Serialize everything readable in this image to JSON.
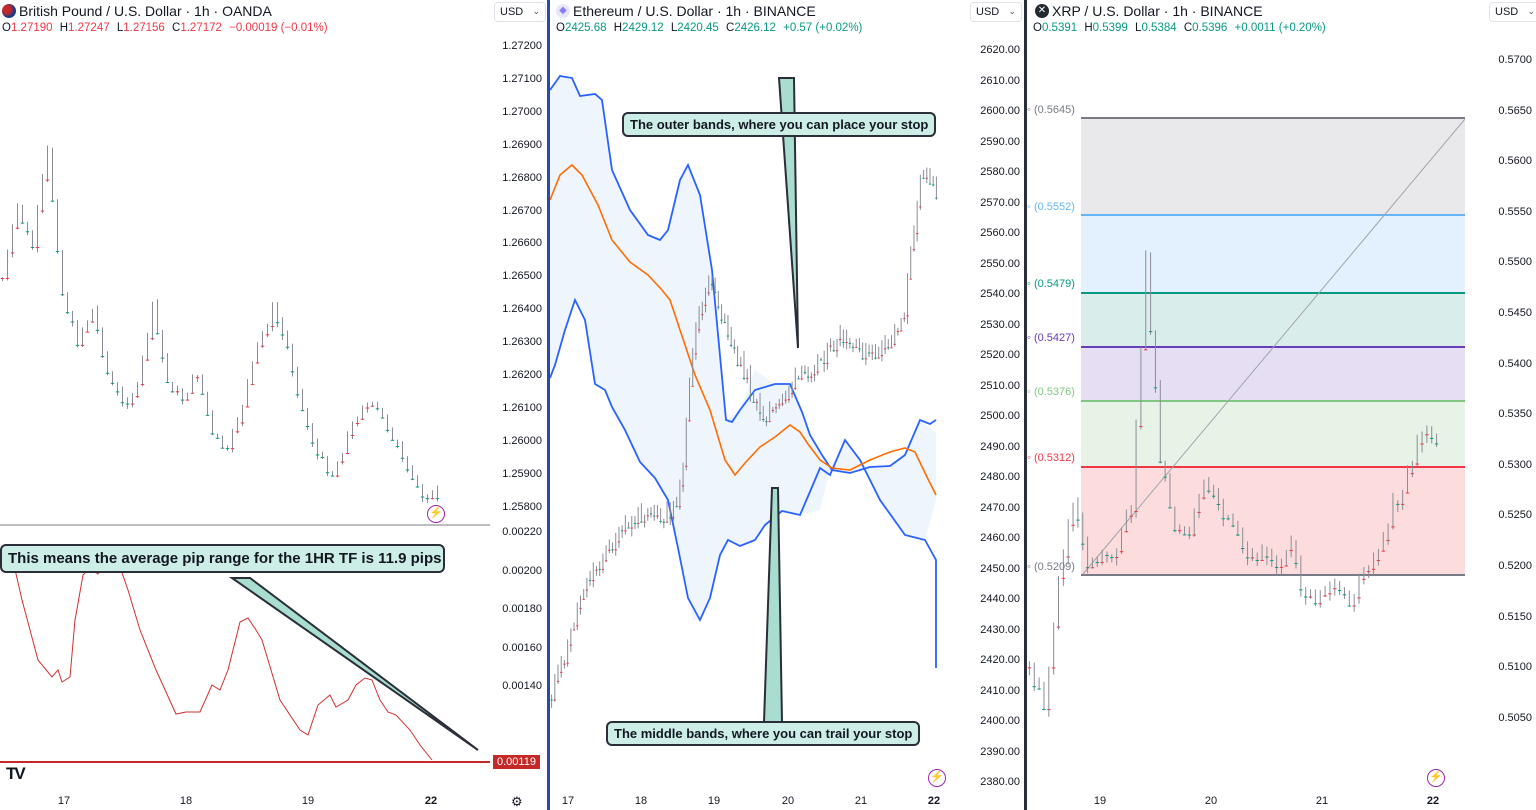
{
  "panes": [
    {
      "title": "British Pound / U.S. Dollar · 1h · OANDA",
      "icon": "gbp-usd-flag-icon",
      "currency": "USD",
      "ohlc": {
        "o": "1.27190",
        "h": "1.27247",
        "l": "1.27156",
        "c": "1.27172",
        "change": "−0.00019 (−0.01%)",
        "color": "#f23645"
      },
      "price_axis": [
        "1.27200",
        "1.27100",
        "1.27000",
        "1.26900",
        "1.26800",
        "1.26700",
        "1.26600",
        "1.26500",
        "1.26400",
        "1.26300",
        "1.26200",
        "1.26100",
        "1.26000",
        "1.25900",
        "1.25800"
      ],
      "indicator_axis": [
        "0.00220",
        "0.00200",
        "0.00180",
        "0.00160",
        "0.00140"
      ],
      "indicator_value": "0.00119",
      "time_axis": [
        "17",
        "18",
        "19",
        "22"
      ],
      "callout": "This means the average pip range for the 1HR TF is 11.9 pips",
      "logo": "TV"
    },
    {
      "title": "Ethereum / U.S. Dollar · 1h · BINANCE",
      "icon": "ethereum-icon",
      "currency": "USD",
      "ohlc": {
        "o": "2425.68",
        "h": "2429.12",
        "l": "2420.45",
        "c": "2426.12",
        "change": "+0.57 (+0.02%)",
        "color": "#089981"
      },
      "price_axis": [
        "2620.00",
        "2610.00",
        "2600.00",
        "2590.00",
        "2580.00",
        "2570.00",
        "2560.00",
        "2550.00",
        "2540.00",
        "2530.00",
        "2520.00",
        "2510.00",
        "2500.00",
        "2490.00",
        "2480.00",
        "2470.00",
        "2460.00",
        "2450.00",
        "2440.00",
        "2430.00",
        "2420.00",
        "2410.00",
        "2400.00",
        "2390.00",
        "2380.00"
      ],
      "time_axis": [
        "17",
        "18",
        "19",
        "20",
        "21",
        "22"
      ],
      "callout_top": "The outer bands, where you can place your stop",
      "callout_bottom": "The middle bands, where you can trail your stop"
    },
    {
      "title": "XRP / U.S. Dollar · 1h · BINANCE",
      "icon": "xrp-icon",
      "currency": "USD",
      "ohlc": {
        "o": "0.5391",
        "h": "0.5399",
        "l": "0.5384",
        "c": "0.5396",
        "change": "+0.0011 (+0.20%)",
        "color": "#089981"
      },
      "price_axis": [
        "0.5700",
        "0.5650",
        "0.5600",
        "0.5550",
        "0.5500",
        "0.5450",
        "0.5400",
        "0.5350",
        "0.5300",
        "0.5250",
        "0.5200",
        "0.5150",
        "0.5100",
        "0.5050"
      ],
      "time_axis": [
        "19",
        "20",
        "21",
        "22"
      ],
      "fib_levels": [
        {
          "label": "(0.5645)",
          "color": "#787b86"
        },
        {
          "label": "(0.5552)",
          "color": "#64b5f6"
        },
        {
          "label": "(0.5479)",
          "color": "#089981"
        },
        {
          "label": "(0.5427)",
          "color": "#673ab7"
        },
        {
          "label": "(0.5376)",
          "color": "#81c784"
        },
        {
          "label": "(0.5312)",
          "color": "#f23645"
        },
        {
          "label": "(0.5209)",
          "color": "#787b86"
        }
      ]
    }
  ],
  "chart_data": [
    {
      "type": "candlestick",
      "title": "British Pound / U.S. Dollar · 1h · OANDA",
      "ylim": [
        1.2575,
        1.2725
      ],
      "x_ticks": [
        "17",
        "18",
        "19",
        "22"
      ],
      "last": {
        "open": 1.2719,
        "high": 1.27247,
        "low": 1.27156,
        "close": 1.27172
      },
      "approx_path": [
        1.265,
        1.2628,
        1.264,
        1.261,
        1.2655,
        1.267,
        1.266,
        1.268,
        1.269,
        1.2685,
        1.266,
        1.2683,
        1.2688,
        1.268,
        1.27,
        1.2705,
        1.269,
        1.2672,
        1.266,
        1.2672,
        1.2692,
        1.2706,
        1.2712,
        1.27,
        1.269,
        1.2692,
        1.27,
        1.2712,
        1.2718,
        1.2719
      ],
      "indicator": {
        "name": "ATR",
        "ylim": [
          0.00115,
          0.00225
        ],
        "last": 0.00119,
        "approx_values": [
          0.00215,
          0.00205,
          0.00175,
          0.00165,
          0.00215,
          0.00218,
          0.00195,
          0.0016,
          0.00145,
          0.00148,
          0.0018,
          0.0018,
          0.0015,
          0.00135,
          0.00155,
          0.00156,
          0.0013,
          0.0015,
          0.0014,
          0.00119
        ]
      }
    },
    {
      "type": "candlestick",
      "title": "Ethereum / U.S. Dollar · 1h · BINANCE",
      "ylim": [
        2375,
        2625
      ],
      "x_ticks": [
        "17",
        "18",
        "19",
        "20",
        "21",
        "22"
      ],
      "last": {
        "open": 2425.68,
        "high": 2429.12,
        "low": 2420.45,
        "close": 2426.12
      },
      "indicator": {
        "name": "Bollinger Bands",
        "upper_color": "#2962ff",
        "basis_color": "#ff6d00",
        "fill": "#e3f2fd"
      },
      "approx_path": [
        2592,
        2575,
        2555,
        2548,
        2540,
        2535,
        2530,
        2535,
        2525,
        2470,
        2455,
        2475,
        2485,
        2500,
        2498,
        2490,
        2485,
        2480,
        2475,
        2478,
        2480,
        2478,
        2465,
        2420,
        2426
      ]
    },
    {
      "type": "candlestick",
      "title": "XRP / U.S. Dollar · 1h · BINANCE",
      "ylim": [
        0.502,
        0.572
      ],
      "x_ticks": [
        "19",
        "20",
        "21",
        "22"
      ],
      "last": {
        "open": 0.5391,
        "high": 0.5399,
        "low": 0.5384,
        "close": 0.5396
      },
      "fibonacci": [
        0.5645,
        0.5552,
        0.5479,
        0.5427,
        0.5376,
        0.5312,
        0.5209
      ],
      "approx_path": [
        0.56,
        0.564,
        0.552,
        0.544,
        0.55,
        0.5495,
        0.549,
        0.545,
        0.522,
        0.54,
        0.547,
        0.548,
        0.542,
        0.545,
        0.547,
        0.55,
        0.549,
        0.551,
        0.548,
        0.554,
        0.553,
        0.552,
        0.554,
        0.551,
        0.549,
        0.545,
        0.542,
        0.538,
        0.5396
      ]
    }
  ]
}
